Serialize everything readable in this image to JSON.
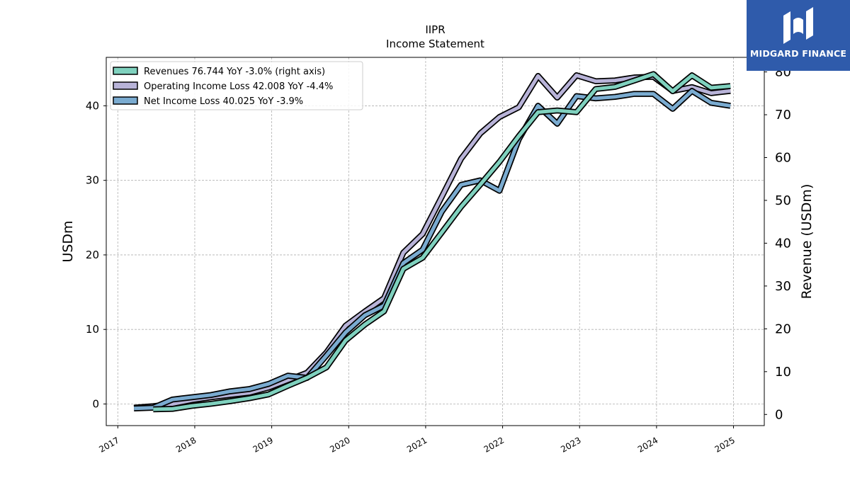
{
  "brand": {
    "name": "MIDGARD FINANCE",
    "bg": "#2f5bab"
  },
  "chart_data": {
    "type": "line",
    "title": "IIPR",
    "subtitle": "Income Statement",
    "ylabel": "USDm",
    "ylabel_right": "Revenue (USDm)",
    "xlim": [
      2016.85,
      2025.4
    ],
    "ylim": [
      -2.9,
      46.5
    ],
    "ylim_right": [
      -2.6,
      83.4
    ],
    "x_ticks": [
      2017,
      2018,
      2019,
      2020,
      2021,
      2022,
      2023,
      2024,
      2025
    ],
    "x_tick_labels": [
      "2017",
      "2018",
      "2019",
      "2020",
      "2021",
      "2022",
      "2023",
      "2024",
      "2025"
    ],
    "y_ticks": [
      0,
      10,
      20,
      30,
      40
    ],
    "y_tick_labels": [
      "0",
      "10",
      "20",
      "30",
      "40"
    ],
    "y_ticks_right": [
      0,
      10,
      20,
      30,
      40,
      50,
      60,
      70,
      80
    ],
    "y_tick_labels_right": [
      "0",
      "10",
      "20",
      "30",
      "40",
      "50",
      "60",
      "70",
      "80"
    ],
    "grid": true,
    "legend_position": "top-left",
    "series": [
      {
        "name": "Revenues",
        "legend": "Revenues  76.744 YoY -3.0% (right axis)",
        "axis": "right",
        "color": "#7fd1be",
        "x": [
          2017.46,
          2017.71,
          2017.96,
          2018.21,
          2018.46,
          2018.71,
          2018.96,
          2019.21,
          2019.46,
          2019.71,
          2019.96,
          2020.21,
          2020.46,
          2020.71,
          2020.96,
          2021.21,
          2021.46,
          2021.71,
          2021.96,
          2022.21,
          2022.46,
          2022.71,
          2022.96,
          2023.21,
          2023.46,
          2023.71,
          2023.96,
          2024.21,
          2024.46,
          2024.71,
          2024.96
        ],
        "values": [
          1.2,
          1.3,
          2.0,
          2.5,
          3.1,
          3.8,
          4.7,
          6.7,
          8.6,
          11.0,
          17.3,
          21.0,
          24.1,
          34.0,
          36.6,
          42.5,
          48.5,
          53.7,
          59.0,
          65.0,
          70.6,
          71.0,
          70.6,
          76.0,
          76.5,
          78.0,
          79.5,
          75.5,
          79.2,
          76.3,
          76.7
        ]
      },
      {
        "name": "Operating Income Loss",
        "legend": "Operating Income Loss  42.008 YoY -4.4%",
        "axis": "left",
        "color": "#b8b3d8",
        "x": [
          2017.21,
          2017.46,
          2017.71,
          2017.96,
          2018.21,
          2018.46,
          2018.71,
          2018.96,
          2019.21,
          2019.46,
          2019.71,
          2019.96,
          2020.21,
          2020.46,
          2020.71,
          2020.96,
          2021.21,
          2021.46,
          2021.71,
          2021.96,
          2022.21,
          2022.46,
          2022.71,
          2022.96,
          2023.21,
          2023.46,
          2023.71,
          2023.96,
          2024.21,
          2024.46,
          2024.71,
          2024.96
        ],
        "values": [
          -0.5,
          -0.3,
          0.0,
          0.5,
          0.9,
          1.2,
          1.5,
          2.2,
          3.2,
          4.2,
          6.9,
          10.5,
          12.4,
          14.2,
          20.3,
          22.8,
          27.8,
          32.9,
          36.3,
          38.5,
          39.8,
          44.0,
          41.1,
          44.1,
          43.3,
          43.4,
          43.8,
          43.9,
          42.0,
          42.5,
          41.7,
          42.0
        ]
      },
      {
        "name": "Net Income Loss",
        "legend": "Net Income Loss  40.025 YoY -3.9%",
        "axis": "left",
        "color": "#7aabd0",
        "x": [
          2017.21,
          2017.46,
          2017.71,
          2017.96,
          2018.21,
          2018.46,
          2018.71,
          2018.96,
          2019.21,
          2019.46,
          2019.71,
          2019.96,
          2020.21,
          2020.46,
          2020.71,
          2020.96,
          2021.21,
          2021.46,
          2021.71,
          2021.96,
          2022.21,
          2022.46,
          2022.71,
          2022.96,
          2023.21,
          2023.46,
          2023.71,
          2023.96,
          2024.21,
          2024.46,
          2024.71,
          2024.96
        ],
        "values": [
          -0.6,
          -0.5,
          0.6,
          0.9,
          1.2,
          1.7,
          2.0,
          2.7,
          3.8,
          3.5,
          6.5,
          9.6,
          11.9,
          13.2,
          18.9,
          20.7,
          25.8,
          29.4,
          30.0,
          28.6,
          35.5,
          40.0,
          37.6,
          41.3,
          41.0,
          41.2,
          41.6,
          41.6,
          39.6,
          42.0,
          40.4,
          40.0
        ]
      }
    ]
  }
}
